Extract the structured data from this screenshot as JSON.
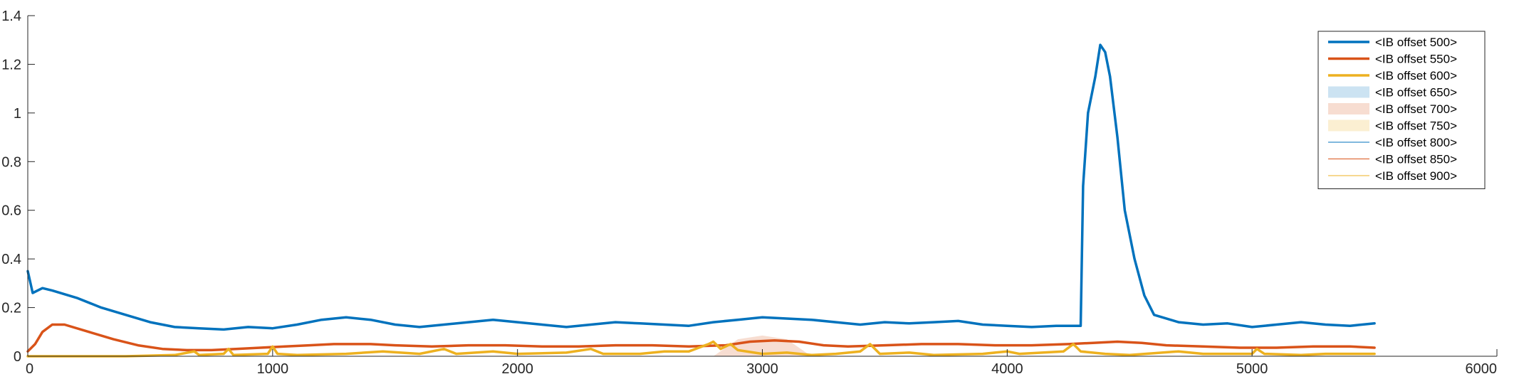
{
  "chart_data": {
    "type": "line",
    "title": "",
    "xlabel": "",
    "ylabel": "",
    "xlim": [
      0,
      6000
    ],
    "ylim": [
      0,
      1.4
    ],
    "xticks": [
      0,
      1000,
      2000,
      3000,
      4000,
      5000,
      6000
    ],
    "yticks": [
      0,
      0.2,
      0.4,
      0.6,
      0.8,
      1,
      1.2,
      1.4
    ],
    "xtick_labels": [
      "0",
      "1000",
      "2000",
      "3000",
      "4000",
      "5000",
      "6000"
    ],
    "ytick_labels": [
      "0",
      "0.2",
      "0.4",
      "0.6",
      "0.8",
      "1",
      "1.2",
      "1.4"
    ],
    "grid": false,
    "legend_position": "top-right",
    "series": [
      {
        "name": "<IB offset 500>",
        "style": "thick-line",
        "color": "#0072BD",
        "points": [
          [
            0,
            0.35
          ],
          [
            20,
            0.26
          ],
          [
            60,
            0.28
          ],
          [
            100,
            0.27
          ],
          [
            200,
            0.24
          ],
          [
            300,
            0.2
          ],
          [
            400,
            0.17
          ],
          [
            500,
            0.14
          ],
          [
            600,
            0.12
          ],
          [
            700,
            0.115
          ],
          [
            800,
            0.11
          ],
          [
            900,
            0.12
          ],
          [
            1000,
            0.115
          ],
          [
            1100,
            0.13
          ],
          [
            1200,
            0.15
          ],
          [
            1300,
            0.16
          ],
          [
            1400,
            0.15
          ],
          [
            1500,
            0.13
          ],
          [
            1600,
            0.12
          ],
          [
            1700,
            0.13
          ],
          [
            1800,
            0.14
          ],
          [
            1900,
            0.15
          ],
          [
            2000,
            0.14
          ],
          [
            2100,
            0.13
          ],
          [
            2200,
            0.12
          ],
          [
            2300,
            0.13
          ],
          [
            2400,
            0.14
          ],
          [
            2500,
            0.135
          ],
          [
            2600,
            0.13
          ],
          [
            2700,
            0.125
          ],
          [
            2800,
            0.14
          ],
          [
            2900,
            0.15
          ],
          [
            3000,
            0.16
          ],
          [
            3100,
            0.155
          ],
          [
            3200,
            0.15
          ],
          [
            3300,
            0.14
          ],
          [
            3400,
            0.13
          ],
          [
            3500,
            0.14
          ],
          [
            3600,
            0.135
          ],
          [
            3700,
            0.14
          ],
          [
            3800,
            0.145
          ],
          [
            3900,
            0.13
          ],
          [
            4000,
            0.125
          ],
          [
            4100,
            0.12
          ],
          [
            4200,
            0.125
          ],
          [
            4300,
            0.125
          ],
          [
            4310,
            0.7
          ],
          [
            4330,
            1.0
          ],
          [
            4360,
            1.15
          ],
          [
            4380,
            1.28
          ],
          [
            4400,
            1.25
          ],
          [
            4420,
            1.15
          ],
          [
            4450,
            0.9
          ],
          [
            4480,
            0.6
          ],
          [
            4520,
            0.4
          ],
          [
            4560,
            0.25
          ],
          [
            4600,
            0.17
          ],
          [
            4700,
            0.14
          ],
          [
            4800,
            0.13
          ],
          [
            4900,
            0.135
          ],
          [
            5000,
            0.12
          ],
          [
            5100,
            0.13
          ],
          [
            5200,
            0.14
          ],
          [
            5300,
            0.13
          ],
          [
            5400,
            0.125
          ],
          [
            5500,
            0.135
          ]
        ]
      },
      {
        "name": "<IB offset 550>",
        "style": "thick-line",
        "color": "#D95319",
        "points": [
          [
            0,
            0.02
          ],
          [
            30,
            0.05
          ],
          [
            60,
            0.1
          ],
          [
            100,
            0.13
          ],
          [
            150,
            0.13
          ],
          [
            250,
            0.1
          ],
          [
            350,
            0.07
          ],
          [
            450,
            0.045
          ],
          [
            550,
            0.03
          ],
          [
            650,
            0.025
          ],
          [
            750,
            0.025
          ],
          [
            850,
            0.03
          ],
          [
            950,
            0.035
          ],
          [
            1050,
            0.04
          ],
          [
            1150,
            0.045
          ],
          [
            1250,
            0.05
          ],
          [
            1400,
            0.05
          ],
          [
            1500,
            0.045
          ],
          [
            1650,
            0.04
          ],
          [
            1800,
            0.045
          ],
          [
            1950,
            0.045
          ],
          [
            2100,
            0.04
          ],
          [
            2250,
            0.04
          ],
          [
            2400,
            0.045
          ],
          [
            2550,
            0.045
          ],
          [
            2700,
            0.04
          ],
          [
            2850,
            0.045
          ],
          [
            2950,
            0.06
          ],
          [
            3050,
            0.065
          ],
          [
            3150,
            0.06
          ],
          [
            3250,
            0.045
          ],
          [
            3350,
            0.04
          ],
          [
            3500,
            0.045
          ],
          [
            3650,
            0.05
          ],
          [
            3800,
            0.05
          ],
          [
            3950,
            0.045
          ],
          [
            4100,
            0.045
          ],
          [
            4250,
            0.05
          ],
          [
            4350,
            0.055
          ],
          [
            4450,
            0.06
          ],
          [
            4550,
            0.055
          ],
          [
            4650,
            0.045
          ],
          [
            4800,
            0.04
          ],
          [
            4950,
            0.035
          ],
          [
            5100,
            0.035
          ],
          [
            5250,
            0.04
          ],
          [
            5400,
            0.04
          ],
          [
            5500,
            0.035
          ]
        ]
      },
      {
        "name": "<IB offset 600>",
        "style": "thick-line",
        "color": "#EDB120",
        "points": [
          [
            0,
            0.0
          ],
          [
            400,
            0.0
          ],
          [
            600,
            0.005
          ],
          [
            680,
            0.02
          ],
          [
            700,
            0.005
          ],
          [
            800,
            0.01
          ],
          [
            820,
            0.03
          ],
          [
            840,
            0.005
          ],
          [
            980,
            0.01
          ],
          [
            1000,
            0.04
          ],
          [
            1020,
            0.01
          ],
          [
            1100,
            0.005
          ],
          [
            1300,
            0.01
          ],
          [
            1450,
            0.02
          ],
          [
            1600,
            0.01
          ],
          [
            1700,
            0.03
          ],
          [
            1750,
            0.01
          ],
          [
            1900,
            0.02
          ],
          [
            2000,
            0.01
          ],
          [
            2200,
            0.015
          ],
          [
            2300,
            0.03
          ],
          [
            2350,
            0.01
          ],
          [
            2500,
            0.01
          ],
          [
            2600,
            0.02
          ],
          [
            2700,
            0.02
          ],
          [
            2780,
            0.05
          ],
          [
            2800,
            0.06
          ],
          [
            2830,
            0.03
          ],
          [
            2870,
            0.05
          ],
          [
            2900,
            0.025
          ],
          [
            3000,
            0.01
          ],
          [
            3100,
            0.015
          ],
          [
            3200,
            0.005
          ],
          [
            3300,
            0.01
          ],
          [
            3400,
            0.02
          ],
          [
            3440,
            0.05
          ],
          [
            3480,
            0.01
          ],
          [
            3600,
            0.015
          ],
          [
            3700,
            0.005
          ],
          [
            3900,
            0.01
          ],
          [
            4000,
            0.02
          ],
          [
            4050,
            0.01
          ],
          [
            4230,
            0.02
          ],
          [
            4270,
            0.05
          ],
          [
            4300,
            0.02
          ],
          [
            4400,
            0.01
          ],
          [
            4500,
            0.005
          ],
          [
            4700,
            0.02
          ],
          [
            4800,
            0.01
          ],
          [
            5000,
            0.01
          ],
          [
            5020,
            0.03
          ],
          [
            5050,
            0.01
          ],
          [
            5200,
            0.005
          ],
          [
            5300,
            0.01
          ],
          [
            5500,
            0.01
          ]
        ]
      },
      {
        "name": "<IB offset 650>",
        "style": "shaded-area",
        "color": "#0072BD",
        "points": []
      },
      {
        "name": "<IB offset 700>",
        "style": "shaded-area",
        "color": "#D95319",
        "points": [
          [
            2800,
            0.0
          ],
          [
            2900,
            0.07
          ],
          [
            3000,
            0.085
          ],
          [
            3100,
            0.07
          ],
          [
            3200,
            0.0
          ]
        ]
      },
      {
        "name": "<IB offset 750>",
        "style": "shaded-area",
        "color": "#EDB120",
        "points": []
      },
      {
        "name": "<IB offset 800>",
        "style": "thin-line",
        "color": "#0072BD",
        "points": []
      },
      {
        "name": "<IB offset 850>",
        "style": "thin-line",
        "color": "#D95319",
        "points": []
      },
      {
        "name": "<IB offset 900>",
        "style": "thin-line",
        "color": "#EDB120",
        "points": []
      }
    ]
  }
}
